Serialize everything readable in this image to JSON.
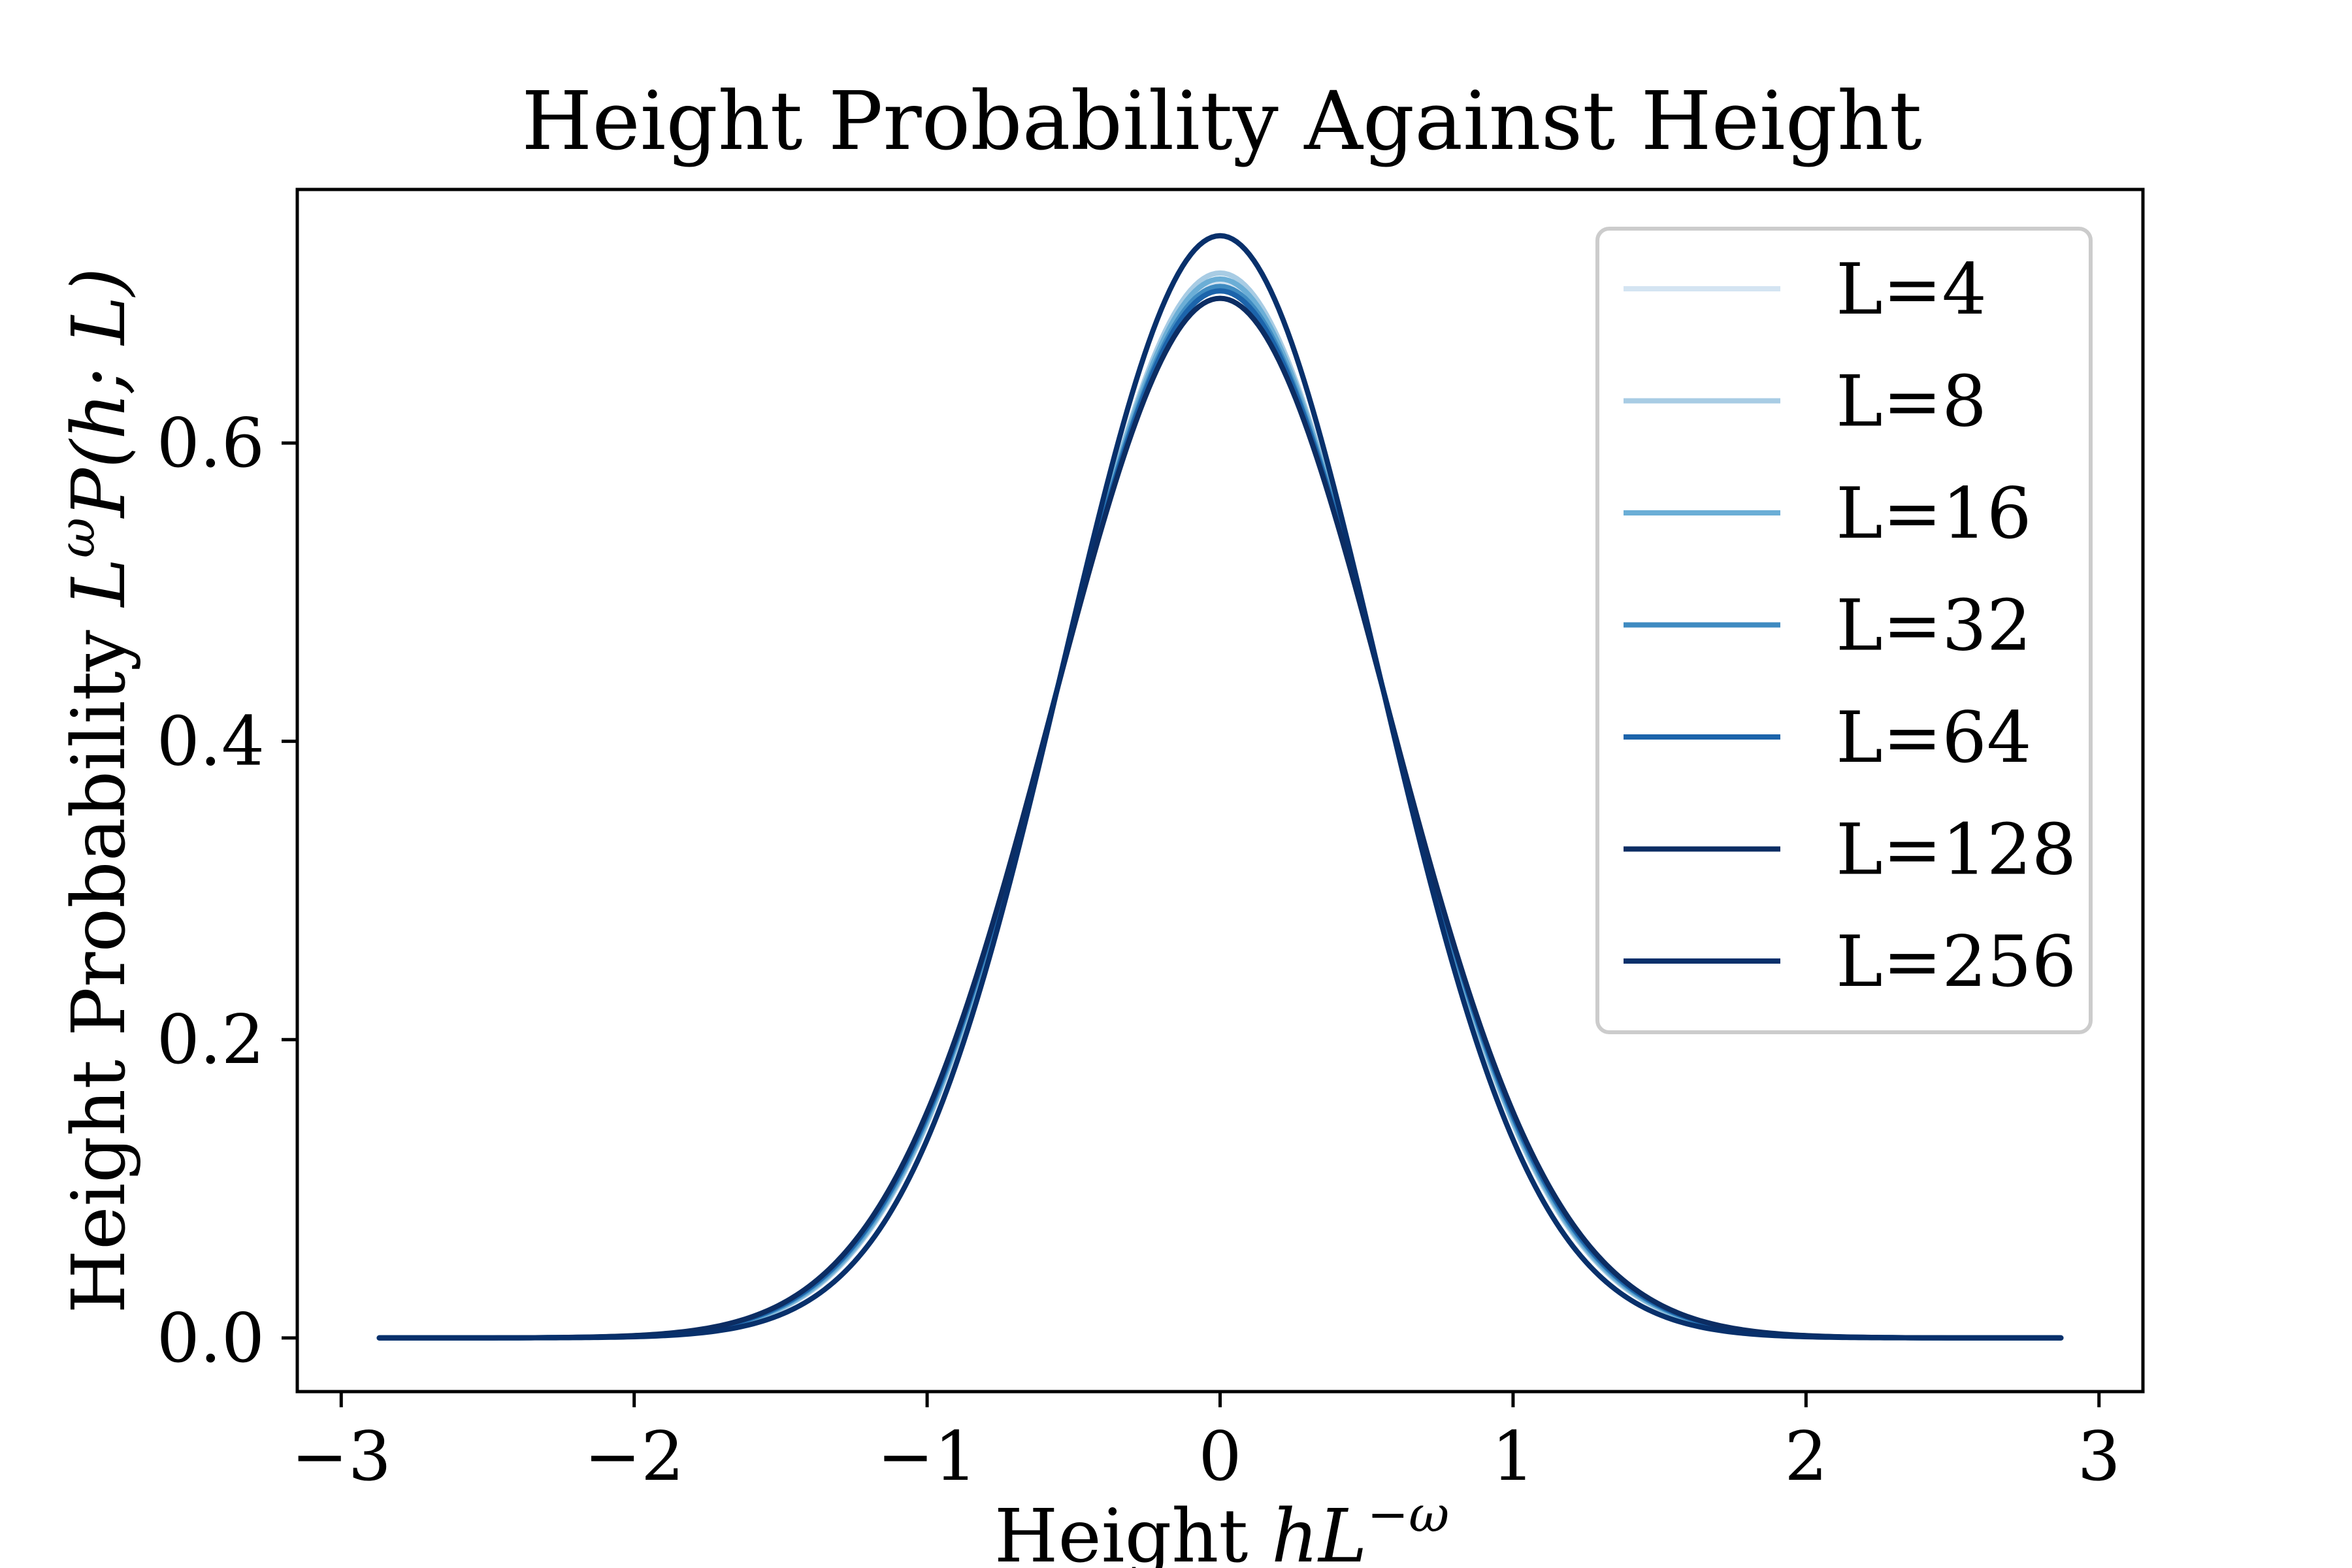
{
  "chart_data": {
    "type": "line",
    "title": "Height Probability Against Height",
    "xlabel": {
      "prefix": "Height ",
      "var1": "h",
      "var2": "L",
      "exponent": "−ω"
    },
    "ylabel": {
      "prefix": "Height Probability ",
      "var1": "L",
      "exponent": "ω",
      "func": "P",
      "args": "(h; L)"
    },
    "xlim": [
      -3.15,
      3.15
    ],
    "ylim": [
      -0.036,
      0.77
    ],
    "xticks": [
      -3,
      -2,
      -1,
      0,
      1,
      2,
      3
    ],
    "xtick_labels": [
      "−3",
      "−2",
      "−1",
      "0",
      "1",
      "2",
      "3"
    ],
    "yticks": [
      0.0,
      0.2,
      0.4,
      0.6
    ],
    "ytick_labels": [
      "0.0",
      "0.2",
      "0.4",
      "0.6"
    ],
    "x_range": [
      -2.87,
      2.87
    ],
    "legend_position": "top-right",
    "series": [
      {
        "name": "L=4",
        "color": "#d4e4f2",
        "peak": 0.708,
        "mean": 0.0,
        "sigma": 0.5635
      },
      {
        "name": "L=8",
        "color": "#a8cce4",
        "peak": 0.714,
        "mean": 0.0,
        "sigma": 0.5588
      },
      {
        "name": "L=16",
        "color": "#6baed6",
        "peak": 0.71,
        "mean": 0.0,
        "sigma": 0.5619
      },
      {
        "name": "L=32",
        "color": "#3f8bc1",
        "peak": 0.705,
        "mean": 0.0,
        "sigma": 0.5659
      },
      {
        "name": "L=64",
        "color": "#1c64ab",
        "peak": 0.702,
        "mean": 0.0,
        "sigma": 0.5683
      },
      {
        "name": "L=128",
        "color": "#0c2d63",
        "peak": 0.697,
        "mean": 0.0,
        "sigma": 0.5724
      },
      {
        "name": "L=256",
        "color": "#08306b",
        "peak": 0.739,
        "mean": 0.0,
        "sigma": 0.5399
      }
    ]
  }
}
